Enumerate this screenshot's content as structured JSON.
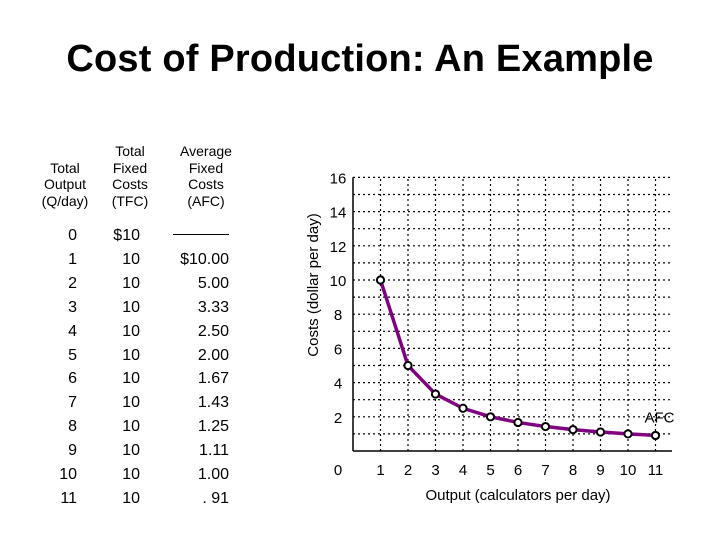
{
  "title": "Cost of Production: An Example",
  "table": {
    "headers": [
      [
        "Total",
        "Output",
        "(Q/day)"
      ],
      [
        "Total",
        "Fixed",
        "Costs",
        "(TFC)"
      ],
      [
        "Average",
        "Fixed",
        "Costs",
        "(AFC)"
      ]
    ],
    "output": [
      "0",
      "1",
      "2",
      "3",
      "4",
      "5",
      "6",
      "7",
      "8",
      "9",
      "10",
      "11"
    ],
    "tfc": [
      "$10",
      "10",
      "10",
      "10",
      "10",
      "10",
      "10",
      "10",
      "10",
      "10",
      "10",
      "10"
    ],
    "afc": [
      "",
      "$10.00",
      "5.00",
      "3.33",
      "2.50",
      "2.00",
      "1.67",
      "1.43",
      "1.25",
      "1.11",
      "1.00",
      ". 91"
    ]
  },
  "chart_data": {
    "type": "line",
    "title": "",
    "xlabel": "Output (calculators per day)",
    "ylabel": "Costs (dollar per day)",
    "x_ticks": [
      "1",
      "2",
      "3",
      "4",
      "5",
      "6",
      "7",
      "8",
      "9",
      "10",
      "11"
    ],
    "y_ticks": [
      "0",
      "2",
      "4",
      "6",
      "8",
      "10",
      "12",
      "14",
      "16"
    ],
    "xlim": [
      0,
      11
    ],
    "ylim": [
      0,
      16
    ],
    "grid": true,
    "series": [
      {
        "name": "AFC",
        "color": "#800080",
        "x": [
          1,
          2,
          3,
          4,
          5,
          6,
          7,
          8,
          9,
          10,
          11
        ],
        "values": [
          10.0,
          5.0,
          3.33,
          2.5,
          2.0,
          1.67,
          1.43,
          1.25,
          1.11,
          1.0,
          0.91
        ]
      }
    ]
  }
}
